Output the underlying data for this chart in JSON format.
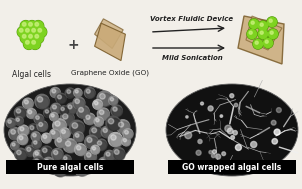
{
  "bg_color": "#f2efe9",
  "algal_color": "#7ed321",
  "algal_highlight": "#c8f07a",
  "algal_shadow": "#4a9400",
  "go_fill": "#c9aa78",
  "go_edge": "#7a5c2a",
  "arrow_color": "#222222",
  "label_algal": "Algal cells",
  "label_go": "Graphene Oxide (GO)",
  "label_vfd": "Vortex Fluidic Device",
  "label_sono": "Mild Sonication",
  "label_pure": "Pure algal cells",
  "label_wrap": "GO wrapped algal cells",
  "plus_color": "#444444",
  "dark_gray": "#222222",
  "sem_bg_left": "#1c1c1c",
  "sem_bg_right": "#111111"
}
